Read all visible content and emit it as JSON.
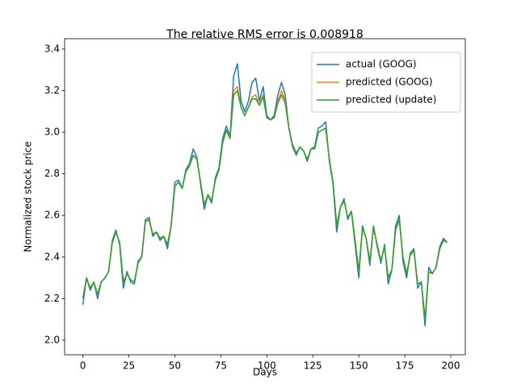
{
  "chart_data": {
    "type": "line",
    "title": "The relative RMS error is 0.008918",
    "x_label": "Days",
    "y_label": "Normalized stock price",
    "x": [
      0,
      2,
      4,
      6,
      8,
      10,
      12,
      14,
      16,
      18,
      20,
      22,
      24,
      26,
      28,
      30,
      32,
      34,
      36,
      38,
      40,
      42,
      44,
      46,
      48,
      50,
      52,
      54,
      56,
      58,
      60,
      62,
      64,
      66,
      68,
      70,
      72,
      74,
      76,
      78,
      80,
      82,
      84,
      86,
      88,
      90,
      92,
      94,
      96,
      98,
      100,
      102,
      104,
      106,
      108,
      110,
      112,
      114,
      116,
      118,
      120,
      122,
      124,
      126,
      128,
      130,
      132,
      134,
      136,
      138,
      140,
      142,
      144,
      146,
      148,
      150,
      152,
      154,
      156,
      158,
      160,
      162,
      164,
      166,
      168,
      170,
      172,
      174,
      176,
      178,
      180,
      182,
      184,
      186,
      188,
      190,
      192,
      194,
      196,
      198
    ],
    "series": [
      {
        "name": "actual (GOOG)",
        "color": "#1f77b4",
        "values": [
          2.17,
          2.3,
          2.24,
          2.28,
          2.2,
          2.28,
          2.3,
          2.33,
          2.48,
          2.53,
          2.46,
          2.25,
          2.33,
          2.28,
          2.27,
          2.38,
          2.4,
          2.58,
          2.59,
          2.5,
          2.52,
          2.48,
          2.5,
          2.44,
          2.55,
          2.76,
          2.77,
          2.73,
          2.82,
          2.85,
          2.92,
          2.88,
          2.75,
          2.63,
          2.7,
          2.66,
          2.78,
          2.83,
          2.97,
          3.03,
          2.98,
          3.27,
          3.33,
          3.15,
          3.1,
          3.15,
          3.24,
          3.26,
          3.15,
          3.22,
          3.08,
          3.06,
          3.08,
          3.18,
          3.24,
          3.18,
          3.02,
          2.93,
          2.89,
          2.93,
          2.91,
          2.86,
          2.92,
          2.93,
          3.02,
          3.03,
          3.05,
          2.86,
          2.75,
          2.52,
          2.64,
          2.68,
          2.58,
          2.62,
          2.46,
          2.3,
          2.55,
          2.49,
          2.36,
          2.55,
          2.45,
          2.37,
          2.46,
          2.27,
          2.34,
          2.55,
          2.6,
          2.38,
          2.3,
          2.42,
          2.44,
          2.25,
          2.28,
          2.07,
          2.35,
          2.32,
          2.35,
          2.45,
          2.49,
          2.47
        ]
      },
      {
        "name": "predicted (GOOG)",
        "color": "#ff7f0e",
        "values": [
          2.2,
          2.3,
          2.25,
          2.28,
          2.22,
          2.28,
          2.3,
          2.33,
          2.47,
          2.52,
          2.47,
          2.28,
          2.32,
          2.29,
          2.28,
          2.37,
          2.4,
          2.57,
          2.58,
          2.51,
          2.52,
          2.49,
          2.5,
          2.46,
          2.55,
          2.74,
          2.76,
          2.73,
          2.81,
          2.84,
          2.89,
          2.87,
          2.76,
          2.65,
          2.7,
          2.67,
          2.77,
          2.82,
          2.95,
          3.01,
          2.97,
          3.2,
          3.22,
          3.12,
          3.08,
          3.12,
          3.17,
          3.18,
          3.13,
          3.18,
          3.07,
          3.06,
          3.07,
          3.15,
          3.2,
          3.15,
          3.02,
          2.94,
          2.9,
          2.93,
          2.91,
          2.87,
          2.92,
          2.92,
          3.0,
          3.01,
          3.02,
          2.87,
          2.76,
          2.55,
          2.64,
          2.67,
          2.59,
          2.62,
          2.48,
          2.33,
          2.54,
          2.49,
          2.38,
          2.54,
          2.46,
          2.38,
          2.45,
          2.3,
          2.34,
          2.53,
          2.58,
          2.4,
          2.32,
          2.41,
          2.43,
          2.27,
          2.28,
          2.1,
          2.33,
          2.32,
          2.35,
          2.44,
          2.48,
          2.47
        ]
      },
      {
        "name": "predicted (update)",
        "color": "#2ca02c",
        "values": [
          2.2,
          2.3,
          2.25,
          2.28,
          2.22,
          2.28,
          2.3,
          2.33,
          2.47,
          2.52,
          2.47,
          2.28,
          2.32,
          2.29,
          2.28,
          2.37,
          2.4,
          2.57,
          2.58,
          2.51,
          2.52,
          2.49,
          2.5,
          2.46,
          2.55,
          2.74,
          2.76,
          2.73,
          2.81,
          2.84,
          2.89,
          2.87,
          2.76,
          2.65,
          2.7,
          2.67,
          2.77,
          2.82,
          2.95,
          3.01,
          2.97,
          3.18,
          3.2,
          3.12,
          3.08,
          3.12,
          3.16,
          3.16,
          3.13,
          3.17,
          3.07,
          3.06,
          3.07,
          3.14,
          3.18,
          3.14,
          3.02,
          2.94,
          2.9,
          2.93,
          2.91,
          2.87,
          2.92,
          2.92,
          3.0,
          3.01,
          3.02,
          2.87,
          2.76,
          2.55,
          2.64,
          2.67,
          2.59,
          2.62,
          2.48,
          2.33,
          2.54,
          2.49,
          2.38,
          2.54,
          2.46,
          2.38,
          2.45,
          2.3,
          2.34,
          2.53,
          2.58,
          2.4,
          2.32,
          2.41,
          2.43,
          2.27,
          2.28,
          2.1,
          2.33,
          2.32,
          2.35,
          2.44,
          2.48,
          2.47
        ]
      }
    ],
    "xlim": [
      -9.9,
      207.9
    ],
    "xticks": [
      0,
      25,
      50,
      75,
      100,
      125,
      150,
      175,
      200
    ],
    "ylim": [
      1.93,
      3.45
    ],
    "yticks": [
      {
        "value": 2,
        "label": "2.0"
      },
      2.2,
      2.4,
      2.6,
      2.8,
      {
        "value": 3,
        "label": "3.0"
      },
      3.2,
      3.4
    ],
    "legend": "upper right"
  }
}
